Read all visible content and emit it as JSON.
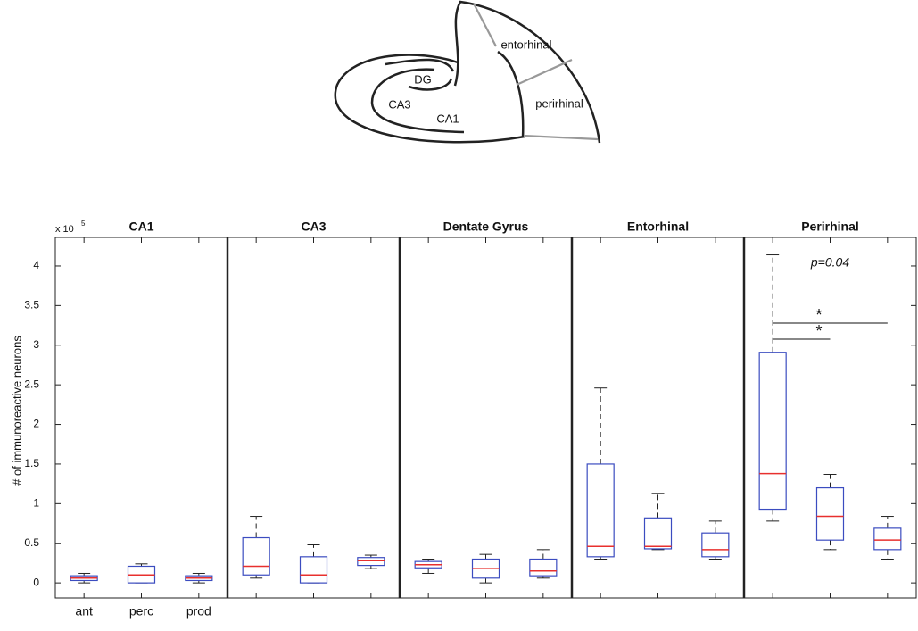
{
  "diagram": {
    "labels": [
      "DG",
      "CA3",
      "CA1",
      "entorhinal",
      "perirhinal"
    ]
  },
  "chart_data": {
    "type": "box",
    "ylabel": "# of immunoreactive neurons",
    "y_scale": {
      "base": "x 10",
      "exponent": "5"
    },
    "ylim": [
      -0.19,
      4.36
    ],
    "yticks": [
      0,
      0.5,
      1,
      1.5,
      2,
      2.5,
      3,
      3.5,
      4
    ],
    "box_color": "#3b4cc0",
    "median_color": "#e8302e",
    "panels": [
      {
        "title": "CA1",
        "categories": [
          "ant",
          "perc",
          "prod"
        ],
        "boxes": [
          {
            "whislo": 0,
            "q1": 0.03,
            "med": 0.06,
            "q3": 0.09,
            "whishi": 0.12
          },
          {
            "whislo": 0,
            "q1": 0,
            "med": 0.1,
            "q3": 0.21,
            "whishi": 0.24
          },
          {
            "whislo": 0,
            "q1": 0.03,
            "med": 0.06,
            "q3": 0.09,
            "whishi": 0.12
          }
        ]
      },
      {
        "title": "CA3",
        "categories": [
          null,
          null,
          null
        ],
        "boxes": [
          {
            "whislo": 0.06,
            "q1": 0.1,
            "med": 0.21,
            "q3": 0.57,
            "whishi": 0.84
          },
          {
            "whislo": 0,
            "q1": 0,
            "med": 0.1,
            "q3": 0.33,
            "whishi": 0.48
          },
          {
            "whislo": 0.18,
            "q1": 0.22,
            "med": 0.28,
            "q3": 0.32,
            "whishi": 0.35
          }
        ]
      },
      {
        "title": "Dentate Gyrus",
        "categories": [
          null,
          null,
          null
        ],
        "boxes": [
          {
            "whislo": 0.12,
            "q1": 0.19,
            "med": 0.23,
            "q3": 0.27,
            "whishi": 0.3
          },
          {
            "whislo": 0,
            "q1": 0.06,
            "med": 0.18,
            "q3": 0.3,
            "whishi": 0.36
          },
          {
            "whislo": 0.06,
            "q1": 0.09,
            "med": 0.15,
            "q3": 0.3,
            "whishi": 0.42
          }
        ]
      },
      {
        "title": "Entorhinal",
        "categories": [
          null,
          null,
          null
        ],
        "boxes": [
          {
            "whislo": 0.3,
            "q1": 0.33,
            "med": 0.46,
            "q3": 1.5,
            "whishi": 2.46
          },
          {
            "whislo": 0.42,
            "q1": 0.43,
            "med": 0.46,
            "q3": 0.82,
            "whishi": 1.13
          },
          {
            "whislo": 0.3,
            "q1": 0.33,
            "med": 0.42,
            "q3": 0.63,
            "whishi": 0.78
          }
        ]
      },
      {
        "title": "Perirhinal",
        "categories": [
          null,
          null,
          null
        ],
        "annotation": "p=0.04",
        "significance": [
          {
            "from": 0,
            "to": 2,
            "label": "*"
          },
          {
            "from": 0,
            "to": 1,
            "label": "*"
          }
        ],
        "boxes": [
          {
            "whislo": 0.78,
            "q1": 0.93,
            "med": 1.38,
            "q3": 2.91,
            "whishi": 4.14
          },
          {
            "whislo": 0.42,
            "q1": 0.54,
            "med": 0.84,
            "q3": 1.2,
            "whishi": 1.37
          },
          {
            "whislo": 0.3,
            "q1": 0.42,
            "med": 0.54,
            "q3": 0.69,
            "whishi": 0.84
          }
        ]
      }
    ]
  }
}
